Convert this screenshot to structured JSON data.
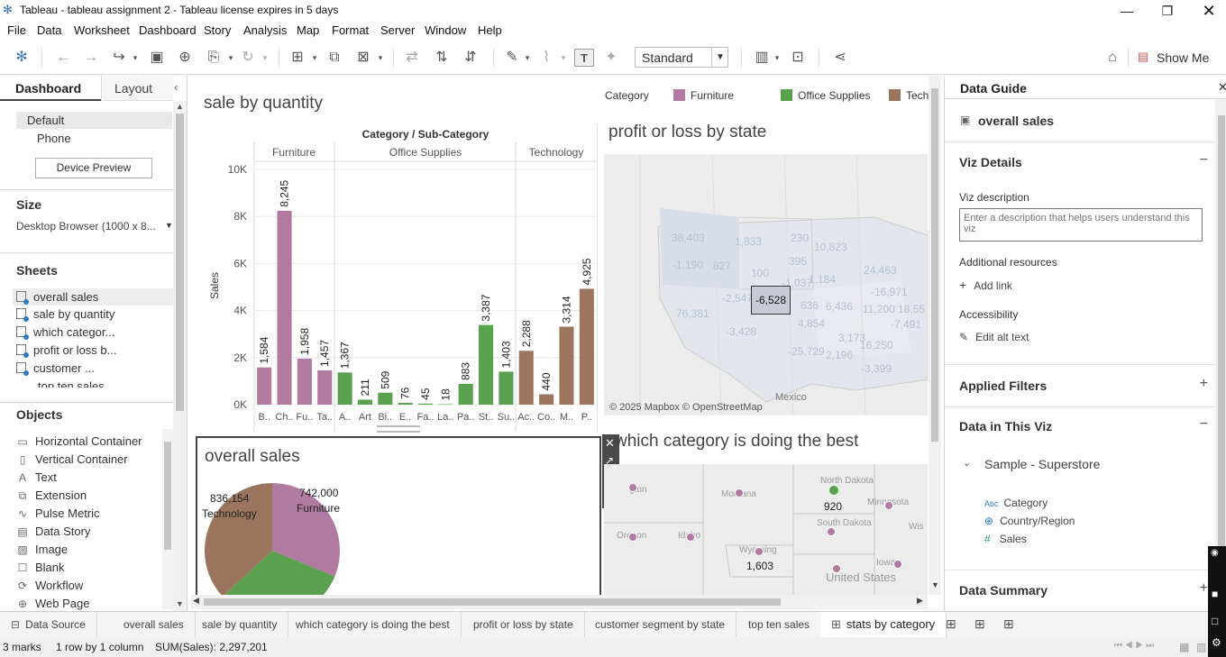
{
  "window": {
    "title": "Tableau - tableau assignment 2 - Tableau license expires in 5 days"
  },
  "menu": [
    "File",
    "Data",
    "Worksheet",
    "Dashboard",
    "Story",
    "Analysis",
    "Map",
    "Format",
    "Server",
    "Window",
    "Help"
  ],
  "toolbar": {
    "fit_mode": "Standard",
    "show_me": "Show Me"
  },
  "left": {
    "tab_dashboard": "Dashboard",
    "tab_layout": "Layout",
    "devices": [
      "Default",
      "Phone"
    ],
    "device_preview": "Device Preview",
    "size_heading": "Size",
    "size_value": "Desktop Browser (1000 x 8...",
    "sheets_heading": "Sheets",
    "sheets": [
      "overall sales",
      "sale by quantity",
      "which categor...",
      "profit or loss b...",
      "customer ...",
      "top ten sales"
    ],
    "objects_heading": "Objects",
    "objects": [
      "Horizontal Container",
      "Vertical Container",
      "Text",
      "Extension",
      "Pulse Metric",
      "Data Story",
      "Image",
      "Blank",
      "Workflow",
      "Web Page"
    ]
  },
  "legend": {
    "heading": "Category",
    "items": [
      "Furniture",
      "Office Supplies",
      "Tech"
    ]
  },
  "colors": {
    "furniture": "#b07aa1",
    "office_supplies": "#59a14f",
    "technology": "#9c755f"
  },
  "bar_chart": {
    "title": "sale by quantity",
    "header": "Category / Sub-Category",
    "groups": [
      "Furniture",
      "Office Supplies",
      "Technology"
    ],
    "ylabel": "Sales",
    "ticks": [
      "10K",
      "8K",
      "6K",
      "4K",
      "2K",
      "0K"
    ]
  },
  "map1": {
    "title": "profit or loss by state",
    "tooltip": "-6,528",
    "attribution": "© 2025 Mapbox © OpenStreetMap",
    "country_label": "Mexico",
    "labels": [
      "38,403",
      "1,833",
      "230",
      "10,823",
      "-1,190",
      "827",
      "395",
      "100",
      "-1,037",
      "1,184",
      "24,463",
      "-16,971",
      "11,200",
      "18,55",
      "-2,547",
      "636",
      "6,436",
      "-7,491",
      "76,381",
      "-3,428",
      "4,854",
      "3,173",
      "16,250",
      "-25,729",
      "2,196",
      "-3,399"
    ]
  },
  "pie": {
    "title": "overall sales",
    "labels": [
      {
        "value": "836,154",
        "name": "Technology"
      },
      {
        "value": "742,000",
        "name": "Furniture"
      }
    ]
  },
  "map2": {
    "title": "which category is doing the best",
    "places": [
      "gton",
      "Montana",
      "North Dakota",
      "Minnesota",
      "Oregon",
      "Idaho",
      "South Dakota",
      "Wyoming",
      "Wis",
      "Iowa",
      "United States"
    ],
    "values": [
      "920",
      "1,603"
    ]
  },
  "guide": {
    "heading": "Data Guide",
    "sheet": "overall sales",
    "viz_details": "Viz Details",
    "viz_desc_label": "Viz description",
    "viz_desc_placeholder": "Enter a description that helps users understand this viz",
    "additional_resources": "Additional resources",
    "add_link": "Add link",
    "accessibility": "Accessibility",
    "edit_alt_text": "Edit alt text",
    "applied_filters": "Applied Filters",
    "data_in_viz": "Data in This Viz",
    "source": "Sample - Superstore",
    "fields": [
      "Category",
      "Country/Region",
      "Sales"
    ],
    "data_summary": "Data Summary"
  },
  "tabs": [
    "Data Source",
    "overall sales",
    "sale by quantity",
    "which category is doing the best",
    "profit or loss by state",
    "customer segment by state",
    "top ten sales",
    "stats by category"
  ],
  "status": {
    "marks": "3 marks",
    "rows": "1 row by 1 column",
    "sum": "SUM(Sales): 2,297,201"
  },
  "chart_data": {
    "type": "bar",
    "title": "sale by quantity",
    "ylabel": "Sales",
    "ylim": [
      0,
      10000
    ],
    "ticks": [
      "10K",
      "8K",
      "6K",
      "4K",
      "2K",
      "0K"
    ],
    "grid": true,
    "groups": [
      "Furniture",
      "Office Supplies",
      "Technology"
    ],
    "categories": [
      "B..",
      "Ch..",
      "Fu..",
      "Ta..",
      "A..",
      "Art",
      "Bi..",
      "E..",
      "Fa..",
      "La..",
      "Pa..",
      "St..",
      "Su..",
      "Ac..",
      "Co..",
      "M..",
      "P.."
    ],
    "values": [
      1584,
      8245,
      1958,
      1457,
      1367,
      211,
      509,
      76,
      45,
      18,
      883,
      3387,
      1403,
      2288,
      440,
      3314,
      4925
    ],
    "labels": [
      "1,584",
      "8,245",
      "1,958",
      "1,457",
      "1,367",
      "211",
      "509",
      "76",
      "45",
      "18",
      "883",
      "3,387",
      "1,403",
      "2,288",
      "440",
      "3,314",
      "4,925"
    ],
    "group_of_bar": [
      0,
      0,
      0,
      0,
      1,
      1,
      1,
      1,
      1,
      1,
      1,
      1,
      1,
      2,
      2,
      2,
      2
    ]
  }
}
